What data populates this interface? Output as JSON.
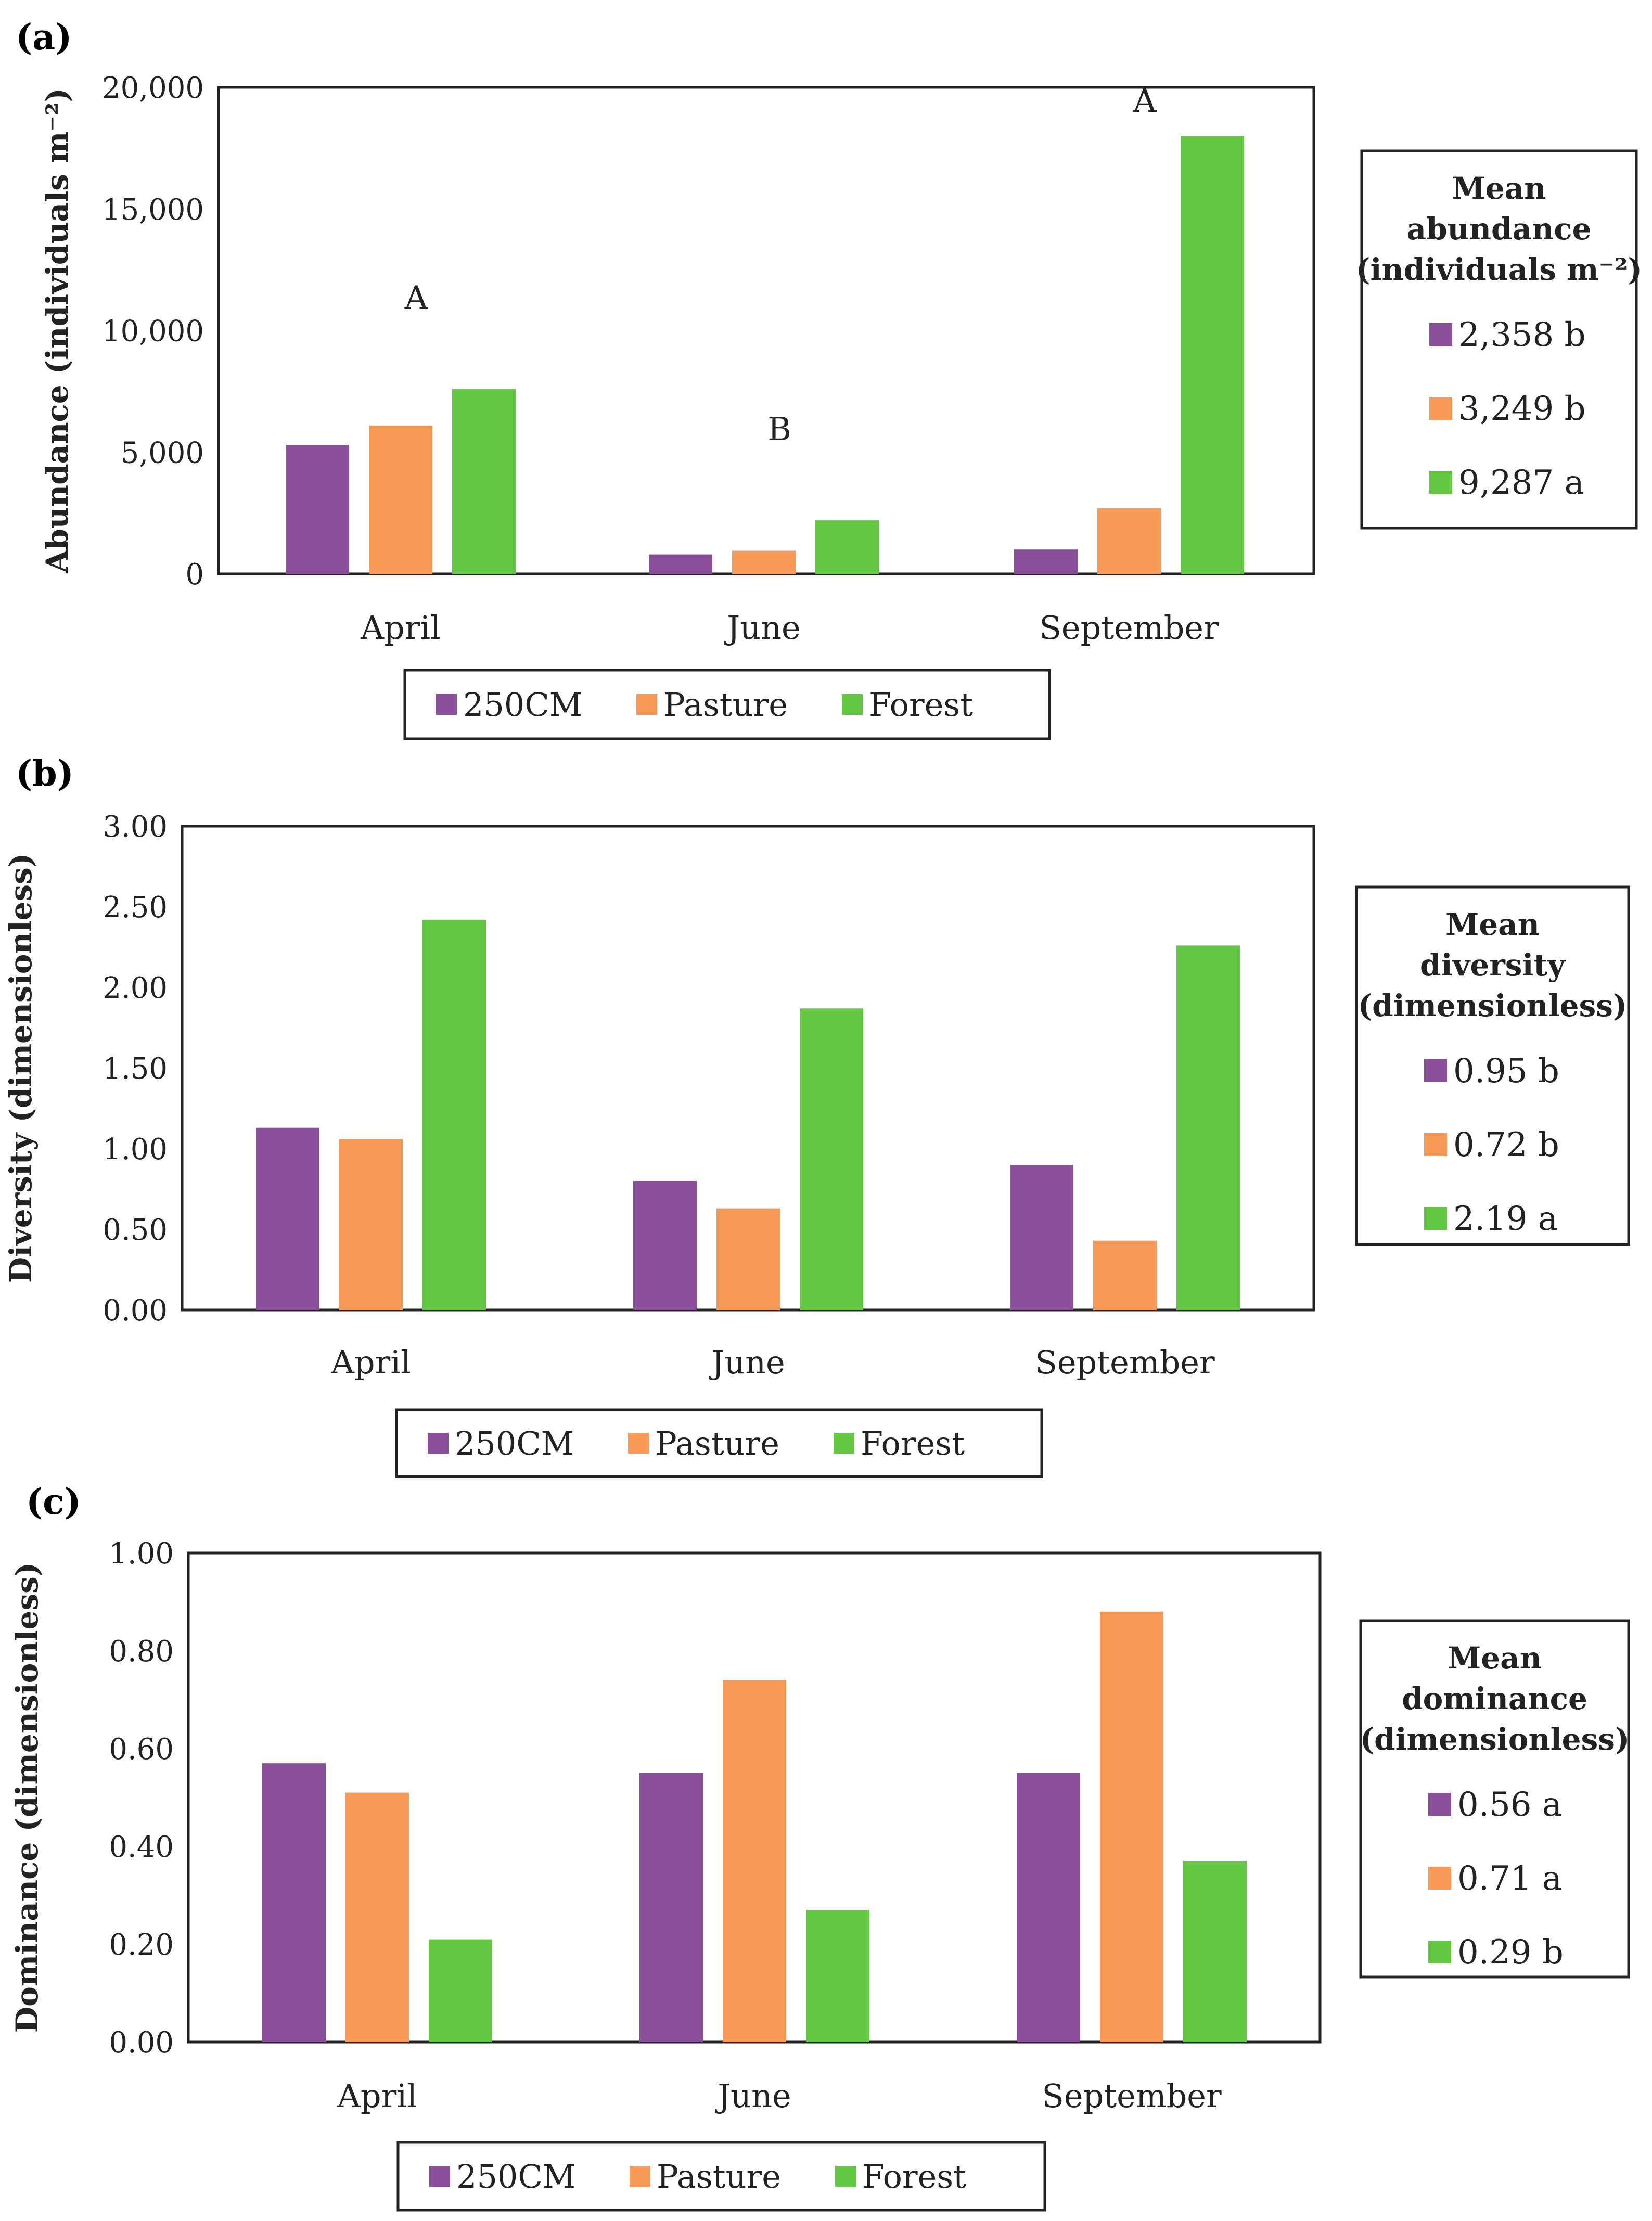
{
  "chart_data": [
    {
      "type": "bar",
      "panel_label": "(a)",
      "categories": [
        "April",
        "June",
        "September"
      ],
      "series": [
        {
          "name": "250CM",
          "values": [
            5300,
            800,
            1000
          ]
        },
        {
          "name": "Pasture",
          "values": [
            6100,
            950,
            2700
          ]
        },
        {
          "name": "Forest",
          "values": [
            7600,
            2200,
            18000
          ]
        }
      ],
      "ylabel": "Abundance (individuals m⁻²)",
      "ylim": [
        0,
        20000
      ],
      "yticks": [
        "0",
        "5,000",
        "10,000",
        "15,000",
        "20,000"
      ],
      "ytick_values": [
        0,
        5000,
        10000,
        15000,
        20000
      ],
      "annotations": [
        {
          "category": "April",
          "text": "A",
          "value": 10900
        },
        {
          "category": "June",
          "text": "B",
          "value": 5500
        },
        {
          "category": "September",
          "text": "A",
          "value": 19000
        }
      ],
      "legend": [
        "250CM",
        "Pasture",
        "Forest"
      ],
      "summary_box": {
        "title_lines": [
          "Mean",
          "abundance",
          "(individuals m⁻²)"
        ],
        "entries": [
          {
            "series": "250CM",
            "text": "2,358 b"
          },
          {
            "series": "Pasture",
            "text": "3,249 b"
          },
          {
            "series": "Forest",
            "text": "9,287 a"
          }
        ]
      }
    },
    {
      "type": "bar",
      "panel_label": "(b)",
      "categories": [
        "April",
        "June",
        "September"
      ],
      "series": [
        {
          "name": "250CM",
          "values": [
            1.13,
            0.8,
            0.9
          ]
        },
        {
          "name": "Pasture",
          "values": [
            1.06,
            0.63,
            0.43
          ]
        },
        {
          "name": "Forest",
          "values": [
            2.42,
            1.87,
            2.26
          ]
        }
      ],
      "ylabel": "Diversity (dimensionless)",
      "ylim": [
        0,
        3
      ],
      "yticks": [
        "0.00",
        "0.50",
        "1.00",
        "1.50",
        "2.00",
        "2.50",
        "3.00"
      ],
      "ytick_values": [
        0,
        0.5,
        1,
        1.5,
        2,
        2.5,
        3
      ],
      "annotations": [],
      "legend": [
        "250CM",
        "Pasture",
        "Forest"
      ],
      "summary_box": {
        "title_lines": [
          "Mean",
          "diversity",
          "(dimensionless)"
        ],
        "entries": [
          {
            "series": "250CM",
            "text": "0.95 b"
          },
          {
            "series": "Pasture",
            "text": "0.72 b"
          },
          {
            "series": "Forest",
            "text": "2.19 a"
          }
        ]
      }
    },
    {
      "type": "bar",
      "panel_label": "(c)",
      "categories": [
        "April",
        "June",
        "September"
      ],
      "series": [
        {
          "name": "250CM",
          "values": [
            0.57,
            0.55,
            0.55
          ]
        },
        {
          "name": "Pasture",
          "values": [
            0.51,
            0.74,
            0.88
          ]
        },
        {
          "name": "Forest",
          "values": [
            0.21,
            0.27,
            0.37
          ]
        }
      ],
      "ylabel": "Dominance (dimensionless)",
      "ylim": [
        0,
        1
      ],
      "yticks": [
        "0.00",
        "0.20",
        "0.40",
        "0.60",
        "0.80",
        "1.00"
      ],
      "ytick_values": [
        0,
        0.2,
        0.4,
        0.6,
        0.8,
        1
      ],
      "annotations": [],
      "legend": [
        "250CM",
        "Pasture",
        "Forest"
      ],
      "summary_box": {
        "title_lines": [
          "Mean",
          "dominance",
          "(dimensionless)"
        ],
        "entries": [
          {
            "series": "250CM",
            "text": "0.56 a"
          },
          {
            "series": "Pasture",
            "text": "0.71 a"
          },
          {
            "series": "Forest",
            "text": "0.29 b"
          }
        ]
      }
    }
  ],
  "colors": {
    "250CM": "#8B4F9C",
    "Pasture": "#F79A58",
    "Forest": "#63C744"
  }
}
